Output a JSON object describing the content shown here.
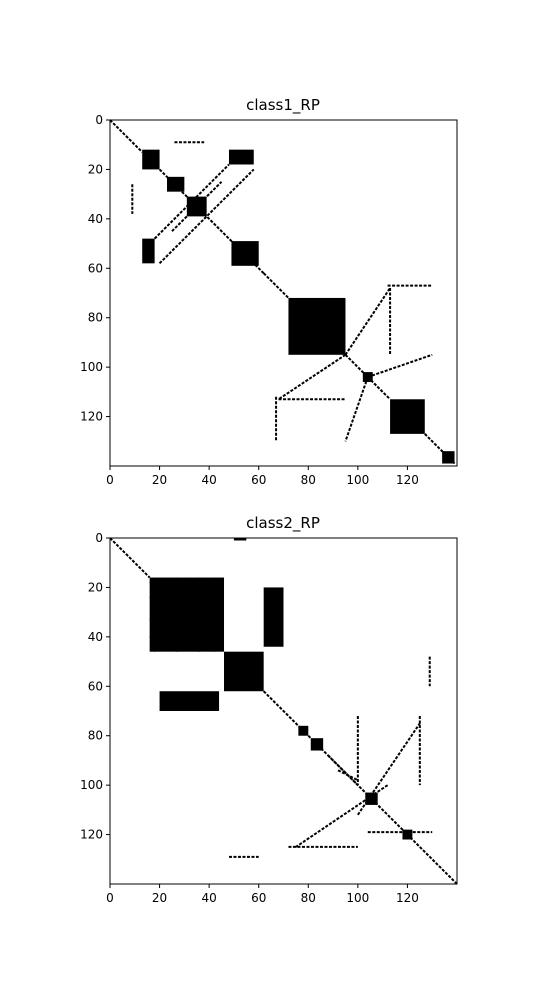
{
  "chart_data": [
    {
      "type": "heatmap",
      "title": "class1_RP",
      "xlabel": "",
      "ylabel": "",
      "xlim": [
        0,
        140
      ],
      "ylim": [
        140,
        0
      ],
      "x_ticks": [
        "0",
        "20",
        "40",
        "60",
        "80",
        "100",
        "120"
      ],
      "y_ticks": [
        "0",
        "20",
        "40",
        "60",
        "80",
        "100",
        "120"
      ],
      "grid": false,
      "colors": {
        "recurrence": "#000000",
        "background": "#ffffff"
      },
      "blocks": [
        {
          "x0": 13,
          "x1": 20,
          "y0": 12,
          "y1": 20
        },
        {
          "x0": 23,
          "x1": 30,
          "y0": 23,
          "y1": 29
        },
        {
          "x0": 31,
          "x1": 39,
          "y0": 31,
          "y1": 39
        },
        {
          "x0": 49,
          "x1": 60,
          "y0": 49,
          "y1": 59
        },
        {
          "x0": 72,
          "x1": 95,
          "y0": 72,
          "y1": 95
        },
        {
          "x0": 113,
          "x1": 127,
          "y0": 113,
          "y1": 127
        },
        {
          "x0": 13,
          "x1": 18,
          "y0": 48,
          "y1": 58
        },
        {
          "x0": 48,
          "x1": 58,
          "y0": 12,
          "y1": 18
        },
        {
          "x0": 102,
          "x1": 106,
          "y0": 102,
          "y1": 106
        },
        {
          "x0": 134,
          "x1": 139,
          "y0": 134,
          "y1": 139
        }
      ],
      "segments": [
        {
          "x0": 0,
          "y0": 0,
          "x1": 13,
          "y1": 13
        },
        {
          "x0": 20,
          "y0": 20,
          "x1": 62,
          "y1": 62
        },
        {
          "x0": 62,
          "y0": 62,
          "x1": 78,
          "y1": 78
        },
        {
          "x0": 95,
          "y0": 95,
          "x1": 113,
          "y1": 113
        },
        {
          "x0": 127,
          "y0": 127,
          "x1": 139,
          "y1": 139
        },
        {
          "x0": 20,
          "y0": 58,
          "x1": 58,
          "y1": 20
        },
        {
          "x0": 18,
          "y0": 48,
          "x1": 48,
          "y1": 18
        },
        {
          "x0": 25,
          "y0": 45,
          "x1": 45,
          "y1": 25
        },
        {
          "x0": 112,
          "y0": 67,
          "x1": 130,
          "y1": 67
        },
        {
          "x0": 67,
          "y0": 112,
          "x1": 67,
          "y1": 130
        },
        {
          "x0": 113,
          "y0": 68,
          "x1": 113,
          "y1": 95
        },
        {
          "x0": 68,
          "y0": 113,
          "x1": 95,
          "y1": 113
        },
        {
          "x0": 95,
          "y0": 95,
          "x1": 113,
          "y1": 68
        },
        {
          "x0": 95,
          "y0": 95,
          "x1": 68,
          "y1": 113
        },
        {
          "x0": 104,
          "y0": 104,
          "x1": 130,
          "y1": 95
        },
        {
          "x0": 104,
          "y0": 104,
          "x1": 95,
          "y1": 130
        },
        {
          "x0": 26,
          "y0": 9,
          "x1": 38,
          "y1": 9
        },
        {
          "x0": 9,
          "y0": 26,
          "x1": 9,
          "y1": 38
        }
      ]
    },
    {
      "type": "heatmap",
      "title": "class2_RP",
      "xlabel": "",
      "ylabel": "",
      "xlim": [
        0,
        140
      ],
      "ylim": [
        140,
        0
      ],
      "x_ticks": [
        "0",
        "20",
        "40",
        "60",
        "80",
        "100",
        "120"
      ],
      "y_ticks": [
        "0",
        "20",
        "40",
        "60",
        "80",
        "100",
        "120"
      ],
      "grid": false,
      "colors": {
        "recurrence": "#000000",
        "background": "#ffffff"
      },
      "blocks": [
        {
          "x0": 16,
          "x1": 46,
          "y0": 16,
          "y1": 46
        },
        {
          "x0": 46,
          "x1": 62,
          "y0": 46,
          "y1": 62
        },
        {
          "x0": 62,
          "x1": 70,
          "y0": 20,
          "y1": 44
        },
        {
          "x0": 20,
          "x1": 44,
          "y0": 62,
          "y1": 70
        },
        {
          "x0": 76,
          "x1": 80,
          "y0": 76,
          "y1": 80
        },
        {
          "x0": 81,
          "x1": 86,
          "y0": 81,
          "y1": 86
        },
        {
          "x0": 103,
          "x1": 108,
          "y0": 103,
          "y1": 108
        },
        {
          "x0": 118,
          "x1": 122,
          "y0": 118,
          "y1": 122
        },
        {
          "x0": 50,
          "x1": 55,
          "y0": 0,
          "y1": 1
        }
      ],
      "segments": [
        {
          "x0": 0,
          "y0": 0,
          "x1": 16,
          "y1": 16
        },
        {
          "x0": 62,
          "y0": 62,
          "x1": 140,
          "y1": 140
        },
        {
          "x0": 88,
          "y0": 88,
          "x1": 100,
          "y1": 100
        },
        {
          "x0": 92,
          "y0": 94,
          "x1": 100,
          "y1": 98
        },
        {
          "x0": 100,
          "y0": 112,
          "x1": 125,
          "y1": 75
        },
        {
          "x0": 112,
          "y0": 100,
          "x1": 75,
          "y1": 125
        },
        {
          "x0": 104,
          "y0": 119,
          "x1": 130,
          "y1": 119
        },
        {
          "x0": 72,
          "y0": 125,
          "x1": 100,
          "y1": 125
        },
        {
          "x0": 100,
          "y0": 72,
          "x1": 100,
          "y1": 100
        },
        {
          "x0": 125,
          "y0": 72,
          "x1": 125,
          "y1": 100
        },
        {
          "x0": 48,
          "y0": 129,
          "x1": 60,
          "y1": 129
        },
        {
          "x0": 129,
          "y0": 48,
          "x1": 129,
          "y1": 60
        },
        {
          "x0": 16,
          "y0": 18,
          "x1": 46,
          "y1": 18
        },
        {
          "x0": 16,
          "y0": 24,
          "x1": 46,
          "y1": 24
        },
        {
          "x0": 16,
          "y0": 33,
          "x1": 46,
          "y1": 33
        },
        {
          "x0": 16,
          "y0": 40,
          "x1": 46,
          "y1": 40
        },
        {
          "x0": 18,
          "y0": 16,
          "x1": 18,
          "y1": 46
        },
        {
          "x0": 27,
          "y0": 16,
          "x1": 27,
          "y1": 46
        },
        {
          "x0": 36,
          "y0": 16,
          "x1": 36,
          "y1": 46
        },
        {
          "x0": 42,
          "y0": 16,
          "x1": 42,
          "y1": 46
        }
      ]
    }
  ]
}
